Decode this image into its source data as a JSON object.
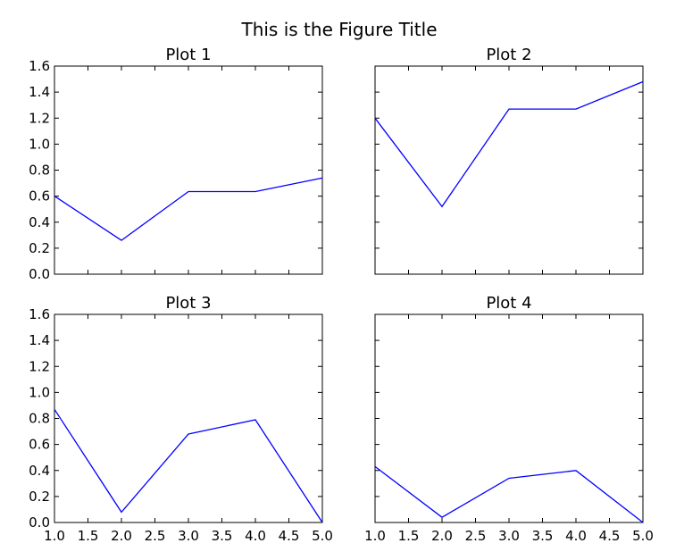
{
  "figure": {
    "title": "This is the Figure Title"
  },
  "chart_data": [
    {
      "type": "line",
      "title": "Plot 1",
      "x": [
        1.0,
        2.0,
        3.0,
        4.0,
        5.0
      ],
      "series": [
        {
          "values": [
            0.6,
            0.26,
            0.635,
            0.635,
            0.74
          ],
          "color": "#0000ff"
        }
      ],
      "xlim": [
        1.0,
        5.0
      ],
      "ylim": [
        0.0,
        1.6
      ],
      "xticks": [
        "1.0",
        "1.5",
        "2.0",
        "2.5",
        "3.0",
        "3.5",
        "4.0",
        "4.5",
        "5.0"
      ],
      "yticks": [
        "0.0",
        "0.2",
        "0.4",
        "0.6",
        "0.8",
        "1.0",
        "1.2",
        "1.4",
        "1.6"
      ],
      "show_xticklabels": false,
      "show_yticklabels": true,
      "grid": false
    },
    {
      "type": "line",
      "title": "Plot 2",
      "x": [
        1.0,
        2.0,
        3.0,
        4.0,
        5.0
      ],
      "series": [
        {
          "values": [
            1.2,
            0.52,
            1.27,
            1.27,
            1.48
          ],
          "color": "#0000ff"
        }
      ],
      "xlim": [
        1.0,
        5.0
      ],
      "ylim": [
        0.0,
        1.6
      ],
      "xticks": [
        "1.0",
        "1.5",
        "2.0",
        "2.5",
        "3.0",
        "3.5",
        "4.0",
        "4.5",
        "5.0"
      ],
      "yticks": [
        "0.0",
        "0.2",
        "0.4",
        "0.6",
        "0.8",
        "1.0",
        "1.2",
        "1.4",
        "1.6"
      ],
      "show_xticklabels": false,
      "show_yticklabels": false,
      "grid": false
    },
    {
      "type": "line",
      "title": "Plot 3",
      "x": [
        1.0,
        2.0,
        3.0,
        4.0,
        5.0
      ],
      "series": [
        {
          "values": [
            0.87,
            0.08,
            0.68,
            0.79,
            0.0
          ],
          "color": "#0000ff"
        }
      ],
      "xlim": [
        1.0,
        5.0
      ],
      "ylim": [
        0.0,
        1.6
      ],
      "xticks": [
        "1.0",
        "1.5",
        "2.0",
        "2.5",
        "3.0",
        "3.5",
        "4.0",
        "4.5",
        "5.0"
      ],
      "yticks": [
        "0.0",
        "0.2",
        "0.4",
        "0.6",
        "0.8",
        "1.0",
        "1.2",
        "1.4",
        "1.6"
      ],
      "show_xticklabels": true,
      "show_yticklabels": true,
      "grid": false
    },
    {
      "type": "line",
      "title": "Plot 4",
      "x": [
        1.0,
        2.0,
        3.0,
        4.0,
        5.0
      ],
      "series": [
        {
          "values": [
            0.43,
            0.04,
            0.34,
            0.4,
            0.0
          ],
          "color": "#0000ff"
        }
      ],
      "xlim": [
        1.0,
        5.0
      ],
      "ylim": [
        0.0,
        1.6
      ],
      "xticks": [
        "1.0",
        "1.5",
        "2.0",
        "2.5",
        "3.0",
        "3.5",
        "4.0",
        "4.5",
        "5.0"
      ],
      "yticks": [
        "0.0",
        "0.2",
        "0.4",
        "0.6",
        "0.8",
        "1.0",
        "1.2",
        "1.4",
        "1.6"
      ],
      "show_xticklabels": true,
      "show_yticklabels": false,
      "grid": false
    }
  ]
}
